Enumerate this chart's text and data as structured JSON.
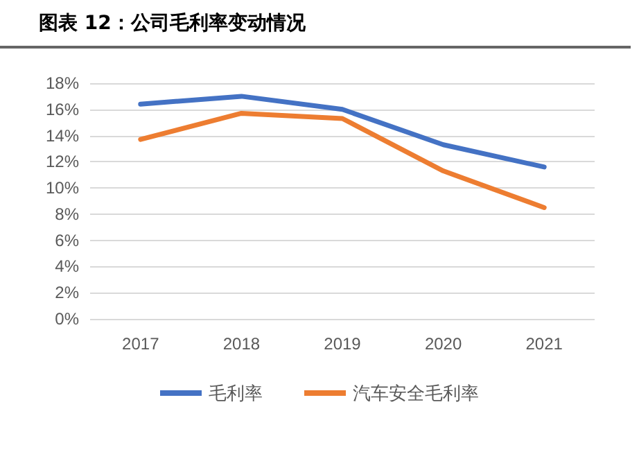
{
  "chart_data": {
    "type": "line",
    "title": "图表 12：公司毛利率变动情况",
    "categories": [
      "2017",
      "2018",
      "2019",
      "2020",
      "2021"
    ],
    "series": [
      {
        "name": "毛利率",
        "color": "#4472c4",
        "values": [
          16.4,
          17.0,
          16.0,
          13.3,
          11.6
        ]
      },
      {
        "name": "汽车安全毛利率",
        "color": "#ed7d31",
        "values": [
          13.7,
          15.7,
          15.3,
          11.3,
          8.5
        ]
      }
    ],
    "ylim": [
      0,
      18
    ],
    "yticks": [
      {
        "value": 0,
        "label": "0%"
      },
      {
        "value": 2,
        "label": "2%"
      },
      {
        "value": 4,
        "label": "4%"
      },
      {
        "value": 6,
        "label": "6%"
      },
      {
        "value": 8,
        "label": "8%"
      },
      {
        "value": 10,
        "label": "10%"
      },
      {
        "value": 12,
        "label": "12%"
      },
      {
        "value": 14,
        "label": "14%"
      },
      {
        "value": 16,
        "label": "16%"
      },
      {
        "value": 18,
        "label": "18%"
      }
    ],
    "grid": "y",
    "legend": "bottom",
    "marker": "none",
    "line_style": "solid"
  }
}
